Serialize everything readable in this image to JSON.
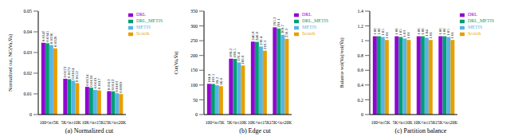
{
  "chart_data": [
    {
      "type": "bar",
      "title": "(a) Normalized cut",
      "y_label": "Normalized cut, NC(Va,V̄a)",
      "categories": [
        "100<n≤5K",
        "5K<n≤10K",
        "10K<n≤15K",
        "15K<n≤20K"
      ],
      "series": [
        {
          "name": "DRL",
          "color": "#9400d3",
          "values": [
            0.0347,
            0.0173,
            0.0134,
            0.0113
          ],
          "value_labels": [
            "0.0347",
            "0.0173",
            "0.0134",
            "0.0113"
          ]
        },
        {
          "name": "DRL_METIS",
          "color": "#009e73",
          "values": [
            0.0345,
            0.0171,
            0.013,
            0.0112
          ],
          "value_labels": [
            "0.0345",
            "0.0171",
            "0.0130",
            "0.0112"
          ]
        },
        {
          "name": "METIS",
          "color": "#56b4e9",
          "values": [
            0.0336,
            0.0164,
            0.0119,
            0.0103
          ],
          "value_labels": [
            "0.0336",
            "0.0164",
            "0.0119",
            "0.0103"
          ]
        },
        {
          "name": "Scotch",
          "color": "#e69f00",
          "values": [
            0.032,
            0.0152,
            0.0117,
            0.0099
          ],
          "value_labels": [
            "0.0320",
            "0.0152",
            "0.0117",
            "0.0099"
          ]
        }
      ],
      "ylim": [
        0,
        0.05
      ],
      "yticks": [
        0,
        0.01,
        0.02,
        0.03,
        0.04,
        0.05
      ],
      "grid": false,
      "legend": "upper right",
      "data_labels": true
    },
    {
      "type": "bar",
      "title": "(b) Edge cut",
      "y_label": "Cut(Va,V̄a)",
      "categories": [
        "100<n≤5K",
        "5K<n≤10K",
        "10K<n≤15K",
        "15K<n≤20K"
      ],
      "series": [
        {
          "name": "DRL",
          "color": "#9400d3",
          "values": [
            104.0,
            189.2,
            246.8,
            295.2
          ],
          "value_labels": [
            "104.0",
            "189.2",
            "246.8",
            "295.2"
          ]
        },
        {
          "name": "DRL_METIS",
          "color": "#009e73",
          "values": [
            103.5,
            188.5,
            246.0,
            291.1
          ],
          "value_labels": [
            "103.5",
            "188.5",
            "246.0",
            "291.1"
          ]
        },
        {
          "name": "METIS",
          "color": "#56b4e9",
          "values": [
            99.2,
            176.4,
            230.4,
            269.7
          ],
          "value_labels": [
            "99.2",
            "176.4",
            "230.4",
            "269.7"
          ]
        },
        {
          "name": "Scotch",
          "color": "#e69f00",
          "values": [
            96.0,
            166.0,
            216.3,
            256.3
          ],
          "value_labels": [
            "96.0",
            "166.0",
            "216.3",
            "256.3"
          ]
        }
      ],
      "ylim": [
        0,
        350
      ],
      "yticks": [
        0,
        50,
        100,
        150,
        200,
        250,
        300,
        350
      ],
      "grid": false,
      "legend": "upper right",
      "data_labels": true
    },
    {
      "type": "bar",
      "title": "(c) Partition balance",
      "y_label": "Balance vol(Va)/vol(V̄a)",
      "categories": [
        "100<n≤5K",
        "5K<n≤10K",
        "10K<n≤15K",
        "15K<n≤20K"
      ],
      "series": [
        {
          "name": "DRL",
          "color": "#9400d3",
          "values": [
            1.06,
            1.06,
            1.06,
            1.06
          ]
        },
        {
          "name": "DRL_METIS",
          "color": "#009e73",
          "values": [
            1.06,
            1.05,
            1.06,
            1.06
          ]
        },
        {
          "name": "METIS",
          "color": "#56b4e9",
          "values": [
            1.05,
            1.03,
            1.04,
            1.05
          ]
        },
        {
          "name": "Scotch",
          "color": "#e69f00",
          "values": [
            1.01,
            1.01,
            1.01,
            1.01
          ]
        }
      ],
      "ylim": [
        0,
        1.4
      ],
      "yticks": [
        0,
        0.2,
        0.4,
        0.6,
        0.8,
        1,
        1.2,
        1.4
      ],
      "grid": false,
      "legend": "upper right",
      "data_labels": true
    }
  ]
}
